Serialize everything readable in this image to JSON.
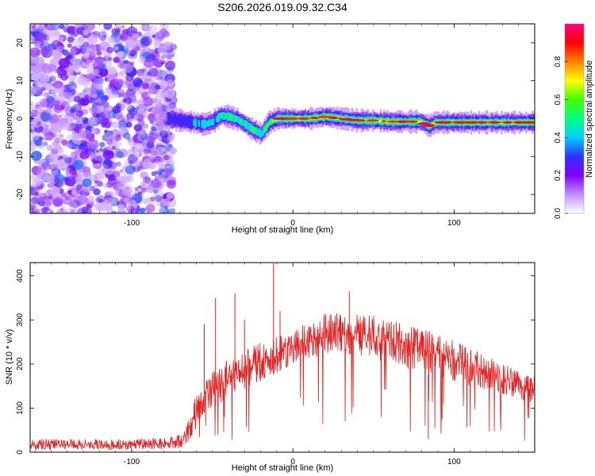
{
  "title": "S206.2026.019.09.32.C34",
  "chart_data": [
    {
      "type": "heatmap",
      "name": "spectrogram",
      "xlabel": "Height of straight line (km)",
      "ylabel": "Frequency (Hz)",
      "xlim": [
        -163,
        150
      ],
      "ylim": [
        -25,
        25
      ],
      "xticks": [
        -100,
        0,
        100
      ],
      "xtick_labels": [
        "-100",
        "0",
        "100"
      ],
      "yticks": [
        20,
        10,
        0,
        -10,
        -20
      ],
      "ytick_labels": [
        "20",
        "10",
        "0",
        "-10",
        "-20"
      ],
      "noise_region_x": [
        -163,
        -78
      ],
      "ridge": {
        "x": [
          -78,
          -70,
          -60,
          -55,
          -50,
          -45,
          -40,
          -35,
          -30,
          -25,
          -20,
          -15,
          -10,
          -5,
          0,
          10,
          20,
          30,
          40,
          50,
          60,
          70,
          78,
          80,
          84,
          88,
          95,
          100,
          110,
          120,
          130,
          140,
          150
        ],
        "frequency_hz": [
          0,
          -0.5,
          -1.2,
          -1.5,
          -0.8,
          0.8,
          0.5,
          -0.2,
          -1.5,
          -3,
          -4,
          -1,
          0,
          0,
          0,
          0,
          0.5,
          0,
          -0.5,
          -0.5,
          -0.8,
          -0.8,
          -0.8,
          -1,
          -2,
          -1,
          -1,
          -1,
          -1,
          -1,
          -1,
          -1,
          -1
        ],
        "amplitude": [
          0.3,
          0.35,
          0.4,
          0.5,
          0.45,
          0.5,
          0.55,
          0.5,
          0.5,
          0.55,
          0.45,
          0.6,
          0.75,
          0.7,
          0.75,
          0.8,
          0.8,
          0.85,
          0.8,
          0.75,
          0.8,
          0.8,
          0.75,
          0.8,
          0.85,
          0.75,
          0.8,
          0.85,
          0.85,
          0.85,
          0.85,
          0.85,
          0.85
        ]
      },
      "colorbar": {
        "label": "Normalized spectral amplitude",
        "range": [
          0,
          1
        ],
        "ticks": [
          0,
          0.2,
          0.4,
          0.6,
          0.8
        ],
        "tick_labels": [
          "0.0",
          "0.2",
          "0.4",
          "0.6",
          "0.8"
        ],
        "colors": [
          "#ffffff",
          "#c090ff",
          "#8000ff",
          "#3030ff",
          "#00d0ff",
          "#00ff80",
          "#40ff00",
          "#ffff00",
          "#ff8000",
          "#ff0000",
          "#ff0080"
        ]
      }
    },
    {
      "type": "line",
      "name": "snr",
      "xlabel": "Height of straight line (km)",
      "ylabel": "SNR (10 * v/v)",
      "xlim": [
        -163,
        150
      ],
      "ylim": [
        0,
        430
      ],
      "xticks": [
        -100,
        0,
        100
      ],
      "xtick_labels": [
        "-100",
        "0",
        "100"
      ],
      "yticks": [
        0,
        100,
        200,
        300,
        400
      ],
      "ytick_labels": [
        "0",
        "100",
        "200",
        "300",
        "400"
      ],
      "color": "#e82020",
      "envelope": {
        "x": [
          -163,
          -140,
          -120,
          -100,
          -80,
          -70,
          -65,
          -62,
          -58,
          -55,
          -50,
          -45,
          -40,
          -35,
          -30,
          -25,
          -20,
          -15,
          -10,
          -5,
          0,
          10,
          20,
          30,
          40,
          50,
          60,
          70,
          80,
          90,
          100,
          110,
          120,
          130,
          140,
          150
        ],
        "upper": [
          30,
          30,
          30,
          30,
          32,
          40,
          70,
          110,
          150,
          170,
          180,
          200,
          210,
          220,
          230,
          240,
          250,
          255,
          265,
          270,
          280,
          300,
          315,
          320,
          315,
          310,
          300,
          290,
          280,
          270,
          260,
          240,
          220,
          200,
          190,
          180
        ],
        "lower": [
          5,
          5,
          5,
          5,
          5,
          8,
          20,
          40,
          70,
          90,
          100,
          110,
          130,
          140,
          145,
          150,
          160,
          170,
          180,
          190,
          200,
          210,
          220,
          225,
          220,
          210,
          200,
          190,
          180,
          170,
          160,
          150,
          140,
          130,
          120,
          110
        ]
      },
      "spikes": [
        {
          "x": -55,
          "y": 290
        },
        {
          "x": -48,
          "y": 350
        },
        {
          "x": -36,
          "y": 360
        },
        {
          "x": -30,
          "y": 300
        },
        {
          "x": -12,
          "y": 430
        },
        {
          "x": -8,
          "y": 320
        },
        {
          "x": 35,
          "y": 365
        },
        {
          "x": 84,
          "y": 30
        }
      ]
    }
  ]
}
